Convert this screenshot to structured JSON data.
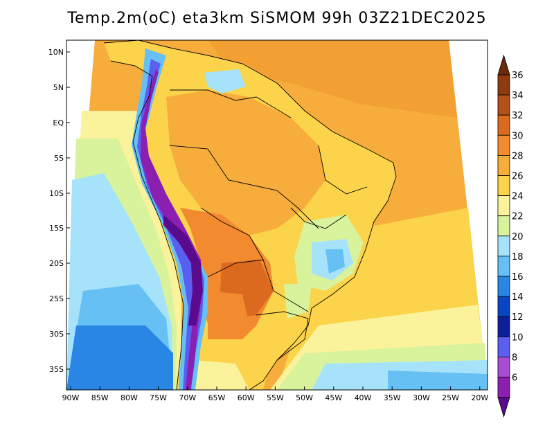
{
  "title": "Temp.2m(oC) eta3km SiSMOM 99h 03Z21DEC2025",
  "map": {
    "variable": "2 m air temperature (°C)",
    "lat_ticks": [
      "10N",
      "5N",
      "EQ",
      "5S",
      "10S",
      "15S",
      "20S",
      "25S",
      "30S",
      "35S"
    ],
    "lon_ticks": [
      "90W",
      "85W",
      "80W",
      "75W",
      "70W",
      "65W",
      "60W",
      "55W",
      "50W",
      "45W",
      "40W",
      "35W",
      "30W",
      "25W",
      "20W"
    ]
  },
  "colorbar": {
    "labels": [
      "36",
      "34",
      "32",
      "30",
      "28",
      "26",
      "24",
      "22",
      "20",
      "18",
      "16",
      "14",
      "12",
      "10",
      "8",
      "6"
    ],
    "colors": [
      "#6b2a0c",
      "#8e3b12",
      "#b5501a",
      "#dc6a1e",
      "#f28a30",
      "#f7ad3b",
      "#fbd44c",
      "#fbf39b",
      "#d8f39c",
      "#a6e3fb",
      "#66c0f4",
      "#2a86e4",
      "#0a46c4",
      "#0d1f9a",
      "#5a5ff0",
      "#a84ed6",
      "#8b1fb0",
      "#5a0a8c"
    ]
  }
}
